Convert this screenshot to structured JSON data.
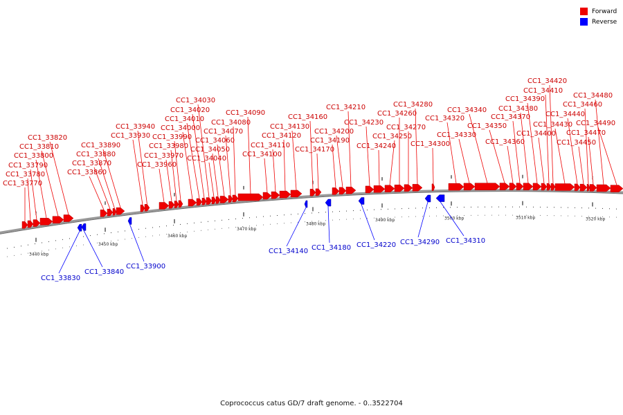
{
  "colors": {
    "forward": "#ee0000",
    "reverse": "#0000ff",
    "backbone": "#999999",
    "text_fwd": "#cc0000",
    "text_rev": "#0000cc"
  },
  "legend": {
    "forward_label": "Forward",
    "reverse_label": "Reverse"
  },
  "caption": "Coprococcus catus GD/7 draft genome. - 0..3522704",
  "ticks": {
    "major_labels": [
      "3440 kbp",
      "3450 kbp",
      "3460 kbp",
      "3470 kbp",
      "3480 kbp",
      "3490 kbp",
      "3500 kbp",
      "3510 kbp",
      "3520 kbp"
    ]
  },
  "forward_genes": [
    "CC1_33770",
    "CC1_33780",
    "CC1_33790",
    "CC1_33800",
    "CC1_33810",
    "CC1_33820",
    "CC1_33860",
    "CC1_33870",
    "CC1_33880",
    "CC1_33890",
    "CC1_33930",
    "CC1_33940",
    "CC1_33960",
    "CC1_33970",
    "CC1_33980",
    "CC1_33990",
    "CC1_34000",
    "CC1_34010",
    "CC1_34020",
    "CC1_34030",
    "CC1_34040",
    "CC1_34050",
    "CC1_34060",
    "CC1_34070",
    "CC1_34080",
    "CC1_34090",
    "CC1_34100",
    "CC1_34110",
    "CC1_34120",
    "CC1_34130",
    "CC1_34160",
    "CC1_34170",
    "CC1_34190",
    "CC1_34200",
    "CC1_34210",
    "CC1_34230",
    "CC1_34240",
    "CC1_34250",
    "CC1_34260",
    "CC1_34270",
    "CC1_34280",
    "CC1_34300",
    "CC1_34320",
    "CC1_34330",
    "CC1_34340",
    "CC1_34350",
    "CC1_34360",
    "CC1_34370",
    "CC1_34380",
    "CC1_34390",
    "CC1_34400",
    "CC1_34410",
    "CC1_34420",
    "CC1_34430",
    "CC1_34440",
    "CC1_34450",
    "CC1_34460",
    "CC1_34470",
    "CC1_34480",
    "CC1_34490"
  ],
  "reverse_genes": [
    "CC1_33830",
    "CC1_33840",
    "CC1_33900",
    "CC1_34140",
    "CC1_34180",
    "CC1_34220",
    "CC1_34290",
    "CC1_34310"
  ]
}
